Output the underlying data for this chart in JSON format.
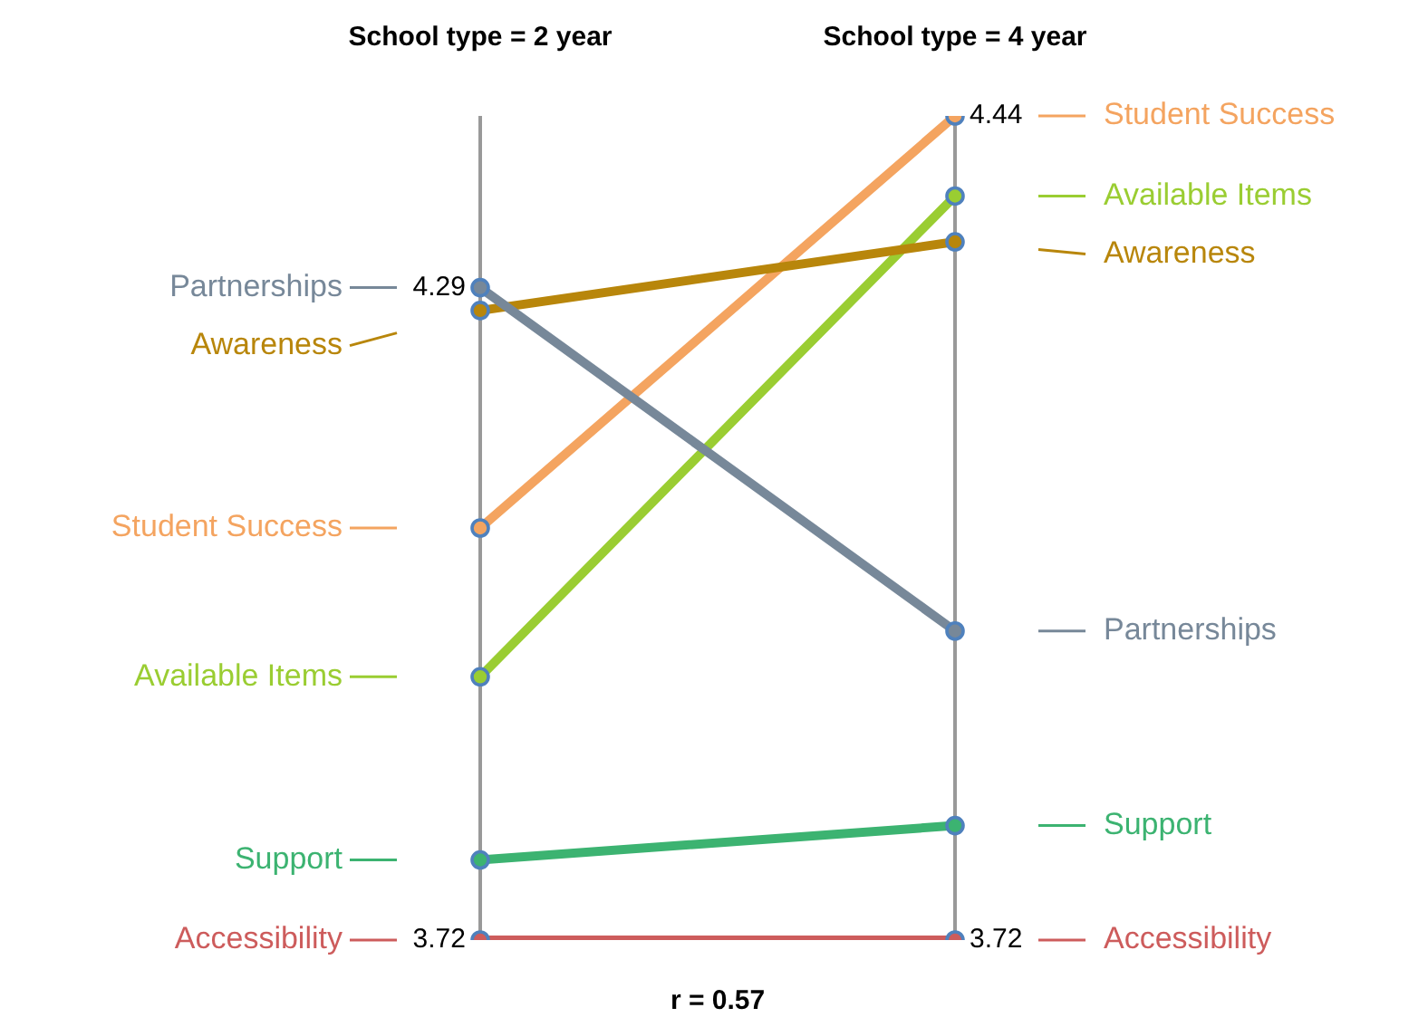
{
  "chart_data": {
    "type": "line",
    "categories": [
      "School type = 2 year",
      "School type = 4 year"
    ],
    "ylim": [
      3.72,
      4.44
    ],
    "yticks": [
      4.29,
      3.72
    ],
    "y2lim": [
      3.72,
      4.44
    ],
    "y2ticks": [
      4.44,
      3.72
    ],
    "series": [
      {
        "name": "Partnerships",
        "color": "#778899",
        "values": [
          4.29,
          3.99
        ]
      },
      {
        "name": "Awareness",
        "color": "#b8860b",
        "values": [
          4.27,
          4.33
        ]
      },
      {
        "name": "Student Success",
        "color": "#f4a460",
        "values": [
          4.08,
          4.44
        ]
      },
      {
        "name": "Available Items",
        "color": "#9acd32",
        "values": [
          3.95,
          4.37
        ]
      },
      {
        "name": "Support",
        "color": "#3cb371",
        "values": [
          3.79,
          3.82
        ]
      },
      {
        "name": "Accessibility",
        "color": "#cd5c5c",
        "values": [
          3.72,
          3.72
        ]
      }
    ],
    "annotations": [
      "r = 0.57"
    ],
    "legend": "right",
    "grid": "x",
    "marker": "circle",
    "line_style": "solid"
  }
}
